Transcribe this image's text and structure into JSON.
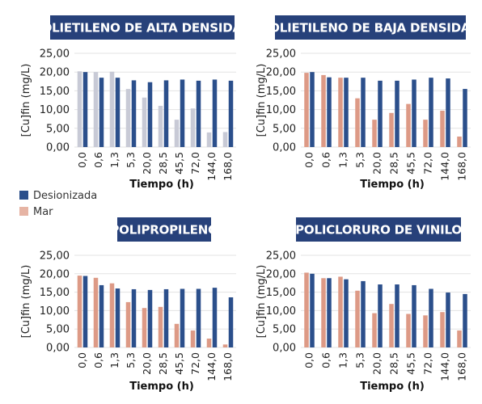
{
  "colors": {
    "title_bg": "#27417a",
    "title_text": "#ffffff",
    "grid": "#e3e3e3",
    "desionizada": "#2b4f8b",
    "mar": "#dd9a86",
    "mar_faded": "#c8cad6"
  },
  "legend": {
    "items": [
      {
        "label": "Desionizada",
        "color": "#2b4f8b"
      },
      {
        "label": "Mar",
        "color": "#e6b4a4"
      }
    ]
  },
  "chart_data": [
    {
      "type": "bar",
      "title": "POLIETILENO DE ALTA DENSIDAD",
      "xlabel": "Tiempo (h)",
      "ylabel": "[Cu]fin (mg/L)",
      "ylim": [
        0,
        25
      ],
      "yticks": [
        "0,00",
        "5,00",
        "10,00",
        "15,00",
        "20,00",
        "25,00"
      ],
      "grid": true,
      "categories": [
        "0,0",
        "0,6",
        "1,3",
        "5,3",
        "20,0",
        "28,5",
        "45,5",
        "72,0",
        "144,0",
        "168,0"
      ],
      "series": [
        {
          "name": "Mar",
          "color_key": "mar_faded",
          "values": [
            20.2,
            20.0,
            20.1,
            15.5,
            13.2,
            11.0,
            7.3,
            10.3,
            3.9,
            4.0
          ]
        },
        {
          "name": "Desionizada",
          "color_key": "desionizada",
          "values": [
            20.0,
            18.5,
            18.5,
            17.8,
            17.3,
            17.8,
            18.0,
            17.7,
            18.0,
            17.7
          ]
        }
      ]
    },
    {
      "type": "bar",
      "title": "POLIETILENO DE BAJA DENSIDAD",
      "xlabel": "Tiempo (h)",
      "ylabel": "[Cu]fin (mg/L)",
      "ylim": [
        0,
        25
      ],
      "yticks": [
        "0,00",
        "5,00",
        "10,00",
        "15,00",
        "20,00",
        "25,00"
      ],
      "grid": true,
      "categories": [
        "0,0",
        "0,6",
        "1,3",
        "5,3",
        "20,0",
        "28,5",
        "45,5",
        "72,0",
        "144,0",
        "168,0"
      ],
      "series": [
        {
          "name": "Mar",
          "color_key": "mar",
          "values": [
            19.8,
            19.2,
            18.5,
            13.0,
            7.3,
            9.1,
            11.5,
            7.3,
            9.7,
            2.8
          ]
        },
        {
          "name": "Desionizada",
          "color_key": "desionizada",
          "values": [
            20.0,
            18.6,
            18.5,
            18.5,
            17.7,
            17.7,
            18.0,
            18.5,
            18.3,
            15.5
          ]
        }
      ]
    },
    {
      "type": "bar",
      "title": "POLIPROPILENO",
      "xlabel": "Tiempo (h)",
      "ylabel": "[Cu]fin (mg/L)",
      "ylim": [
        0,
        25
      ],
      "yticks": [
        "0,00",
        "5,00",
        "10,00",
        "15,00",
        "20,00",
        "25,00"
      ],
      "grid": true,
      "categories": [
        "0,0",
        "0,6",
        "1,3",
        "5,3",
        "20,0",
        "28,5",
        "45,5",
        "72,0",
        "144,0",
        "168,0"
      ],
      "series": [
        {
          "name": "Mar",
          "color_key": "mar",
          "values": [
            19.5,
            18.9,
            17.4,
            12.3,
            10.7,
            11.0,
            6.4,
            4.6,
            2.4,
            0.8
          ]
        },
        {
          "name": "Desionizada",
          "color_key": "desionizada",
          "values": [
            19.4,
            16.9,
            16.0,
            15.8,
            15.6,
            15.8,
            15.9,
            15.9,
            16.2,
            13.6
          ]
        }
      ]
    },
    {
      "type": "bar",
      "title": "POLICLORURO DE VINILO",
      "xlabel": "Tiempo (h)",
      "ylabel": "[Cu]fin (mg/L)",
      "ylim": [
        0,
        25
      ],
      "yticks": [
        "0,00",
        "5,00",
        "10,00",
        "15,00",
        "20,00",
        "25,00"
      ],
      "grid": true,
      "categories": [
        "0,0",
        "0,6",
        "1,3",
        "5,3",
        "20,0",
        "28,5",
        "45,5",
        "72,0",
        "144,0",
        "168,0"
      ],
      "series": [
        {
          "name": "Mar",
          "color_key": "mar",
          "values": [
            20.3,
            18.8,
            19.2,
            15.4,
            9.3,
            11.8,
            9.1,
            8.7,
            9.6,
            4.6
          ]
        },
        {
          "name": "Desionizada",
          "color_key": "desionizada",
          "values": [
            20.0,
            18.8,
            18.5,
            18.0,
            17.1,
            17.1,
            16.9,
            15.9,
            14.9,
            14.5
          ]
        }
      ]
    }
  ]
}
